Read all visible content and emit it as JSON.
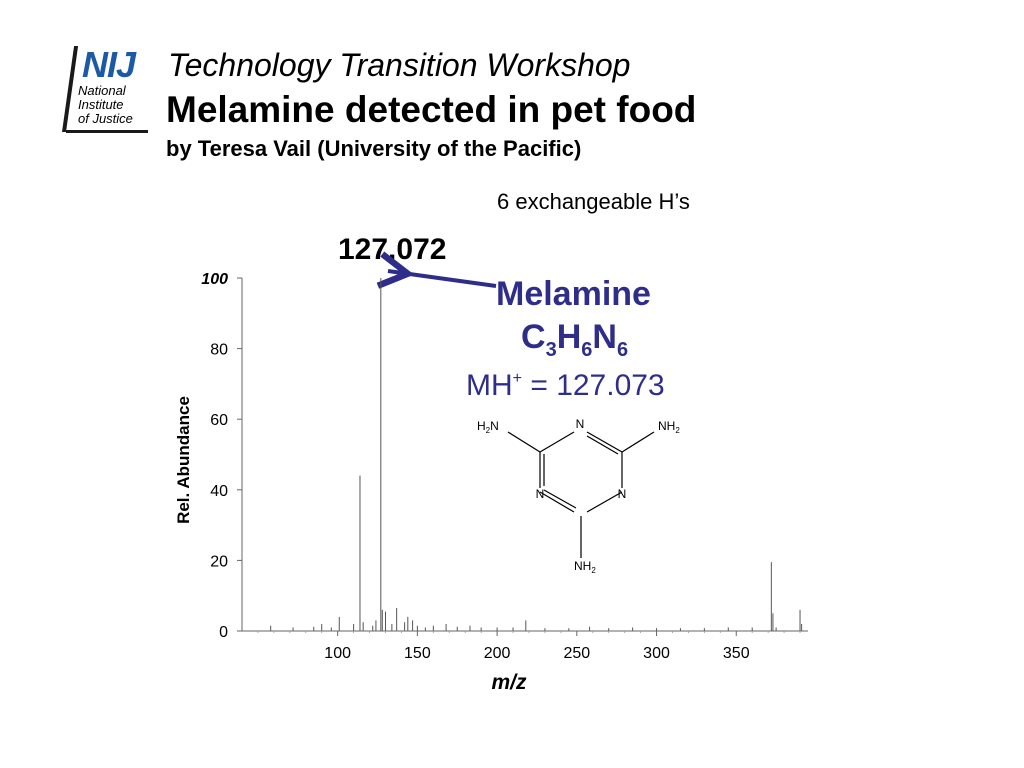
{
  "logo": {
    "mark": "NIJ",
    "line1": "National",
    "line2": "Institute",
    "line3": "of Justice"
  },
  "header": {
    "title": "Technology Transition Workshop",
    "subtitle": "Melamine detected in pet food",
    "byline": "by Teresa Vail (University of the Pacific)"
  },
  "annotation": {
    "exchangeable_note": "6 exchangeable H’s",
    "peak_label": "127.072",
    "compound_name": "Melamine",
    "formula": {
      "c": "C",
      "c_n": "3",
      "h": "H",
      "h_n": "6",
      "n": "N",
      "n_n": "6"
    },
    "mh_prefix": "MH",
    "mh_charge": "+",
    "mh_value": " = 127.073",
    "arrow_color": "#2e2e8a",
    "text_color": "#2e2e8a"
  },
  "structure": {
    "ring_atoms": [
      "N",
      "N",
      "N"
    ],
    "amine_left": {
      "base": "H",
      "sub": "2",
      "tail": "N"
    },
    "amine_right": {
      "base": "NH",
      "sub": "2"
    },
    "amine_bottom": {
      "base": "NH",
      "sub": "2"
    }
  },
  "chart_data": {
    "type": "bar",
    "title": "",
    "xlabel": "m/z",
    "ylabel": "Rel. Abundance",
    "xlim": [
      40,
      395
    ],
    "ylim": [
      0,
      100
    ],
    "xticks": [
      100,
      150,
      200,
      250,
      300,
      350
    ],
    "yticks": [
      0,
      20,
      40,
      60,
      80,
      100
    ],
    "grid": false,
    "peaks": [
      {
        "x": 58,
        "y": 1.5
      },
      {
        "x": 72,
        "y": 1.0
      },
      {
        "x": 85,
        "y": 1.2
      },
      {
        "x": 90,
        "y": 2.0
      },
      {
        "x": 96,
        "y": 1.0
      },
      {
        "x": 101,
        "y": 4.0
      },
      {
        "x": 110,
        "y": 2.0
      },
      {
        "x": 114,
        "y": 44.0
      },
      {
        "x": 116,
        "y": 2.5
      },
      {
        "x": 122,
        "y": 1.5
      },
      {
        "x": 124,
        "y": 3.0
      },
      {
        "x": 127.072,
        "y": 100
      },
      {
        "x": 128,
        "y": 6.0
      },
      {
        "x": 130,
        "y": 5.5
      },
      {
        "x": 134,
        "y": 2.0
      },
      {
        "x": 137,
        "y": 6.5
      },
      {
        "x": 142,
        "y": 2.5
      },
      {
        "x": 144,
        "y": 4.0
      },
      {
        "x": 147,
        "y": 3.0
      },
      {
        "x": 150,
        "y": 1.5
      },
      {
        "x": 155,
        "y": 1.0
      },
      {
        "x": 160,
        "y": 1.5
      },
      {
        "x": 168,
        "y": 2.0
      },
      {
        "x": 175,
        "y": 1.2
      },
      {
        "x": 183,
        "y": 1.5
      },
      {
        "x": 190,
        "y": 1.0
      },
      {
        "x": 200,
        "y": 1.0
      },
      {
        "x": 210,
        "y": 1.0
      },
      {
        "x": 218,
        "y": 3.0
      },
      {
        "x": 230,
        "y": 0.8
      },
      {
        "x": 245,
        "y": 0.8
      },
      {
        "x": 258,
        "y": 1.2
      },
      {
        "x": 270,
        "y": 0.8
      },
      {
        "x": 285,
        "y": 1.0
      },
      {
        "x": 300,
        "y": 0.8
      },
      {
        "x": 315,
        "y": 0.8
      },
      {
        "x": 330,
        "y": 0.8
      },
      {
        "x": 345,
        "y": 1.0
      },
      {
        "x": 360,
        "y": 1.0
      },
      {
        "x": 372,
        "y": 19.5
      },
      {
        "x": 373,
        "y": 5.0
      },
      {
        "x": 375,
        "y": 1.0
      },
      {
        "x": 390,
        "y": 6.0
      },
      {
        "x": 391,
        "y": 2.0
      }
    ],
    "highlighted_peak": 127.072
  }
}
